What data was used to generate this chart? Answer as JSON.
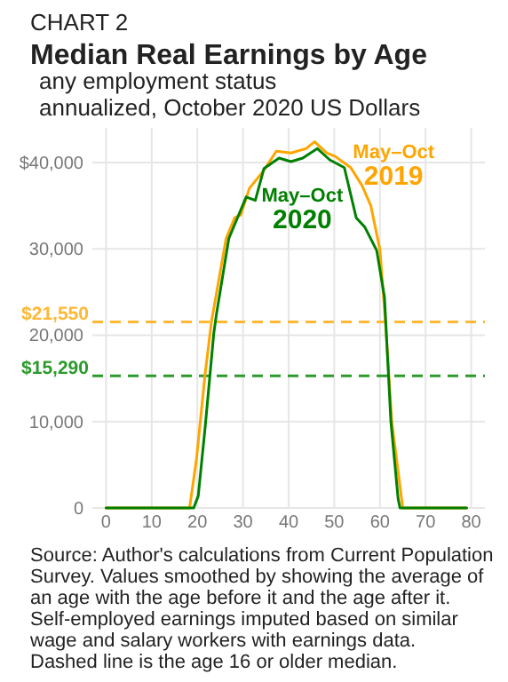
{
  "chart_data": {
    "type": "line",
    "title": "Median Real Earnings by Age",
    "subtitle": "any employment status\nannualized, October 2020 US Dollars",
    "annotations": [
      "CHART 2",
      "Source: Author's calculations from Current Population\nSurvey. Values smoothed by showing the average of\nan age with the age before it and the age after it.\nSelf-employed earnings imputed based on similar\nwage and salary workers with earnings data.\nDashed line is the age 16 or older median."
    ],
    "series": [
      {
        "name": "May–Oct 2019",
        "color": "#ffa500",
        "x": [
          0,
          18.3,
          19.8,
          21.7,
          23.1,
          26.3,
          28.2,
          29.5,
          31.4,
          34.6,
          37.3,
          40.5,
          43.8,
          45.7,
          48.3,
          50.2,
          53.6,
          56.1,
          58,
          60,
          61.2,
          62.6,
          65,
          79
        ],
        "values": [
          0,
          0,
          5600,
          15500,
          21600,
          31200,
          33600,
          33900,
          37000,
          39100,
          41300,
          41100,
          41600,
          42400,
          41100,
          40700,
          39400,
          37300,
          35000,
          29900,
          21600,
          10000,
          0,
          0
        ]
      },
      {
        "name": "May–Oct 2020",
        "color": "#008000",
        "x": [
          0,
          19.2,
          20.2,
          21.7,
          23.6,
          24.2,
          26.9,
          30.7,
          32.7,
          34.6,
          37.9,
          40.5,
          43.1,
          46.3,
          49,
          52.2,
          54.8,
          56.7,
          59.3,
          61,
          62.4,
          64,
          64.4,
          79
        ],
        "values": [
          0,
          0,
          1400,
          9300,
          20200,
          22500,
          31200,
          36000,
          35600,
          39300,
          40500,
          40100,
          40500,
          41600,
          40300,
          39400,
          33600,
          32500,
          29800,
          24400,
          10000,
          1000,
          0,
          0
        ]
      }
    ],
    "xlim": [
      -3,
      83
    ],
    "xticks": [
      0,
      10,
      20,
      30,
      40,
      50,
      60,
      70,
      80
    ],
    "ylim": [
      0,
      44000
    ],
    "yticks": [
      0,
      {
        "value": 10000,
        "label": "10,000"
      },
      {
        "value": 20000,
        "label": "20,000"
      },
      {
        "value": 30000,
        "label": "30,000"
      },
      {
        "value": 40000,
        "label": "$40,000"
      }
    ],
    "grid": true,
    "legend": false,
    "line_style": "solid",
    "marker": "none",
    "ref_lines": [
      {
        "axis": "y",
        "value": 21550,
        "label": "$21,550",
        "color": "#ffb833",
        "line_style": "dashed"
      },
      {
        "axis": "y",
        "value": 15290,
        "label": "$15,290",
        "color": "#2a9a2a",
        "line_style": "dashed"
      }
    ]
  }
}
